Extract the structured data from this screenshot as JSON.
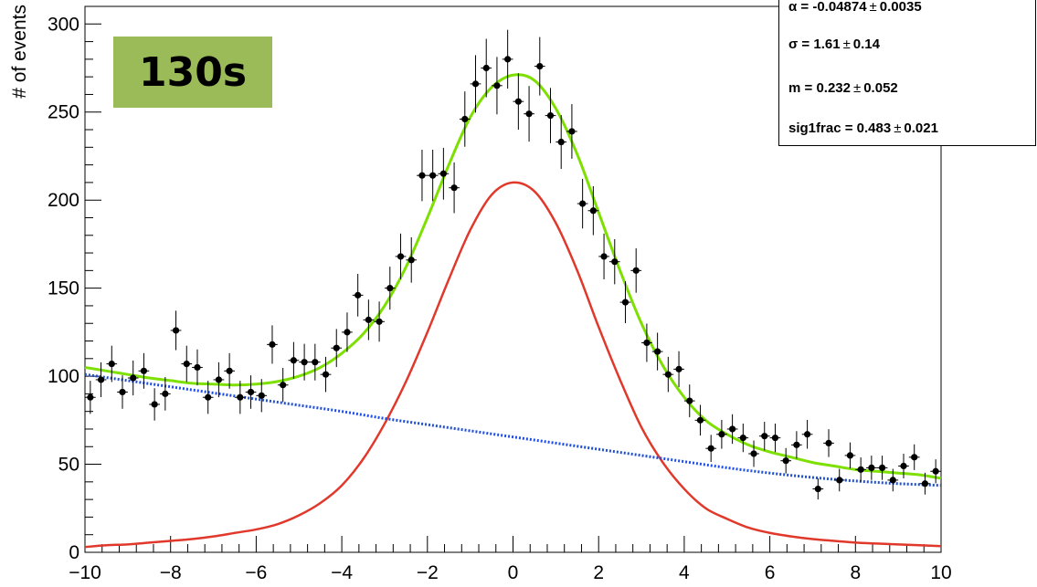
{
  "badge": {
    "text": "130s"
  },
  "stats": [
    {
      "label": "α = ",
      "value": "-0.04874",
      "error": "0.0035"
    },
    {
      "label": "σ = ",
      "value": " 1.61",
      "error": "0.14"
    },
    {
      "label": "m = ",
      "value": " 0.232",
      "error": "0.052"
    },
    {
      "label": "sig1frac = ",
      "value": " 0.483",
      "error": "0.021"
    }
  ],
  "colors": {
    "data": "#000000",
    "total_fit": "#7ee000",
    "signal": "#e0392b",
    "background": "#1f4fe0"
  },
  "chart_data": {
    "type": "scatter",
    "title": "",
    "xlabel": "",
    "ylabel": "# of events",
    "xlim": [
      -10,
      10
    ],
    "ylim": [
      0,
      310
    ],
    "x_ticks": [
      -10,
      -8,
      -6,
      -4,
      -2,
      0,
      2,
      4,
      6,
      8,
      10
    ],
    "y_ticks": [
      0,
      50,
      100,
      150,
      200,
      250,
      300
    ],
    "bin_width": 0.25,
    "series": [
      {
        "kind": "points",
        "x": [
          -9.875,
          -9.625,
          -9.375,
          -9.125,
          -8.875,
          -8.625,
          -8.375,
          -8.125,
          -7.875,
          -7.625,
          -7.375,
          -7.125,
          -6.875,
          -6.625,
          -6.375,
          -6.125,
          -5.875,
          -5.625,
          -5.375,
          -5.125,
          -4.875,
          -4.625,
          -4.375,
          -4.125,
          -3.875,
          -3.625,
          -3.375,
          -3.125,
          -2.875,
          -2.625,
          -2.375,
          -2.125,
          -1.875,
          -1.625,
          -1.375,
          -1.125,
          -0.875,
          -0.625,
          -0.375,
          -0.125,
          0.125,
          0.375,
          0.625,
          0.875,
          1.125,
          1.375,
          1.625,
          1.875,
          2.125,
          2.375,
          2.625,
          2.875,
          3.125,
          3.375,
          3.625,
          3.875,
          4.125,
          4.375,
          4.625,
          4.875,
          5.125,
          5.375,
          5.625,
          5.875,
          6.125,
          6.375,
          6.625,
          6.875,
          7.125,
          7.375,
          7.625,
          7.875,
          8.125,
          8.375,
          8.625,
          8.875,
          9.125,
          9.375,
          9.625,
          9.875
        ],
        "y": [
          88,
          98,
          107,
          91,
          99,
          103,
          84,
          90,
          126,
          107,
          105,
          88,
          98,
          103,
          88,
          91,
          89,
          118,
          95,
          109,
          108,
          108,
          101,
          116,
          125,
          146,
          132,
          131,
          150,
          168,
          166,
          214,
          214,
          215,
          207,
          246,
          266,
          275,
          265,
          280,
          256,
          249,
          276,
          248,
          233,
          239,
          198,
          194,
          168,
          165,
          142,
          160,
          119,
          114,
          101,
          104,
          86,
          75,
          59,
          67,
          70,
          65,
          56,
          66,
          65,
          52,
          61,
          67,
          36,
          62,
          41,
          55,
          47,
          48,
          48,
          41,
          49,
          54,
          39,
          46
        ],
        "y_errors": [
          9.4,
          9.9,
          10.3,
          9.5,
          9.9,
          10.1,
          9.2,
          9.5,
          11.2,
          10.3,
          10.2,
          9.4,
          9.9,
          10.1,
          9.4,
          9.5,
          9.4,
          10.9,
          9.7,
          10.4,
          10.4,
          10.4,
          10.0,
          10.8,
          11.2,
          12.1,
          11.5,
          11.4,
          12.2,
          13.0,
          12.9,
          14.6,
          14.6,
          14.7,
          14.4,
          15.7,
          16.3,
          16.6,
          16.3,
          16.7,
          16.0,
          15.8,
          16.6,
          15.7,
          15.3,
          15.5,
          14.1,
          13.9,
          13.0,
          12.8,
          11.9,
          12.6,
          10.9,
          10.7,
          10.0,
          10.2,
          9.3,
          8.7,
          7.7,
          8.2,
          8.4,
          8.1,
          7.5,
          8.1,
          8.1,
          7.2,
          7.8,
          8.2,
          6.0,
          7.9,
          6.4,
          7.4,
          6.9,
          6.9,
          6.9,
          6.4,
          7.0,
          7.3,
          6.2,
          6.8
        ]
      },
      {
        "kind": "curve",
        "name": "",
        "x": [
          -10,
          -9.5,
          -9,
          -8.5,
          -8,
          -7.5,
          -7,
          -6.5,
          -6,
          -5.5,
          -5,
          -4.5,
          -4,
          -3.5,
          -3,
          -2.5,
          -2,
          -1.5,
          -1,
          -0.5,
          0,
          0.5,
          1,
          1.5,
          2,
          2.5,
          3,
          3.5,
          4,
          4.5,
          5,
          5.5,
          6,
          6.5,
          7,
          7.5,
          8,
          8.5,
          9,
          9.5,
          10
        ],
        "y": [
          105,
          103,
          101,
          99,
          97.5,
          96,
          95.5,
          95,
          95.5,
          97,
          100,
          105,
          113,
          124,
          140,
          162,
          190,
          220,
          247,
          264,
          271,
          268,
          252,
          226,
          193,
          160,
          130,
          106,
          88,
          75,
          67,
          61,
          57,
          54,
          51,
          49,
          47,
          46,
          45,
          44,
          42
        ]
      },
      {
        "kind": "curve",
        "name": "",
        "x": [
          -10,
          -9.5,
          -9,
          -8.5,
          -8,
          -7.5,
          -7,
          -6.5,
          -6,
          -5.5,
          -5,
          -4.5,
          -4,
          -3.5,
          -3,
          -2.5,
          -2,
          -1.5,
          -1,
          -0.5,
          0,
          0.5,
          1,
          1.5,
          2,
          2.5,
          3,
          3.5,
          4,
          4.5,
          5,
          5.5,
          6,
          6.5,
          7,
          7.5,
          8,
          8.5,
          9,
          9.5,
          10
        ],
        "y": [
          3,
          4,
          4.5,
          5.5,
          6.5,
          7.5,
          9,
          11,
          13,
          16,
          21,
          28,
          38,
          53,
          73,
          97,
          125,
          155,
          183,
          203,
          210,
          205,
          187,
          160,
          128,
          98,
          71,
          51,
          36,
          25,
          19,
          14,
          11,
          9,
          7.5,
          6.5,
          5.5,
          5,
          4.5,
          4,
          3.5
        ]
      },
      {
        "kind": "curve",
        "name": "",
        "x": [
          -10,
          -9,
          -8,
          -7,
          -6,
          -5,
          -4,
          -3,
          -2,
          -1,
          0,
          1,
          2,
          3,
          4,
          5,
          6,
          7,
          8,
          9,
          10
        ],
        "y": [
          101,
          97.5,
          94,
          90.5,
          87,
          83.5,
          80,
          76,
          72.5,
          69,
          65.5,
          62,
          58.5,
          55,
          51.5,
          48,
          45,
          42.5,
          40.5,
          39,
          38
        ]
      }
    ]
  }
}
